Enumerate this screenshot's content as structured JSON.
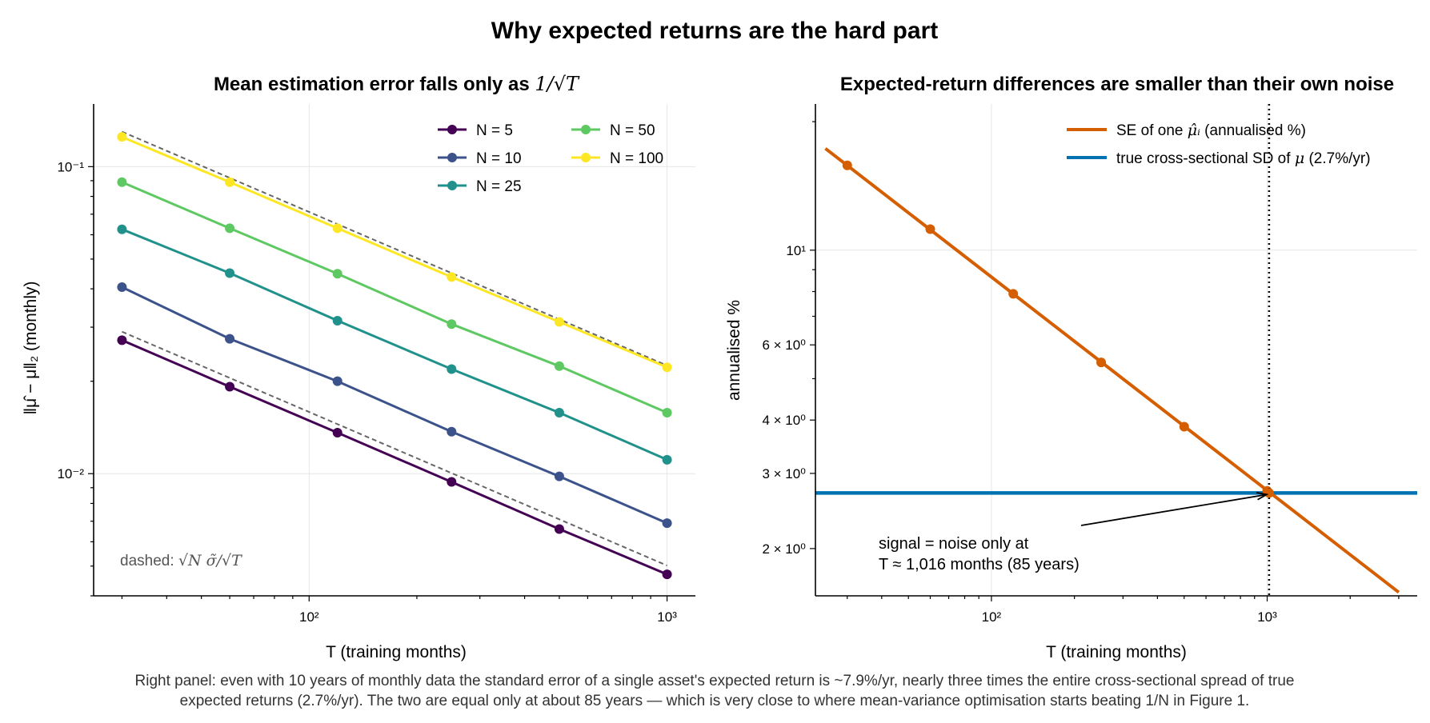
{
  "figure": {
    "title": "Why expected returns are the hard part",
    "caption_line1": "Right panel: even with 10 years of monthly data the standard error of a single asset's expected return is ~7.9%/yr, nearly three times the entire cross-sectional spread of true",
    "caption_line2": "expected returns (2.7%/yr). The two are equal only at about 85 years — which is very close to where mean-variance optimisation starts beating 1/N in Figure 1."
  },
  "chart_data": [
    {
      "type": "line",
      "title": "Mean estimation error falls only as 1/√T",
      "title_text": "Mean estimation error falls only as ",
      "title_math": "1/√T",
      "xlabel": "T  (training months)",
      "ylabel": "‖μ̂ − μ‖₂  (monthly)",
      "xscale": "log",
      "yscale": "log",
      "xlim": [
        25,
        1200
      ],
      "ylim": [
        0.004,
        0.16
      ],
      "xticks": [
        {
          "value": 100,
          "label": "10²"
        },
        {
          "value": 1000,
          "label": "10³"
        }
      ],
      "yticks": [
        {
          "value": 0.01,
          "label": "10⁻²"
        },
        {
          "value": 0.1,
          "label": "10⁻¹"
        }
      ],
      "grid": true,
      "legend_position": "top-right",
      "x": [
        30,
        60,
        120,
        250,
        500,
        1000
      ],
      "series": [
        {
          "name": "N = 5",
          "color": "#440154",
          "values": [
            0.0272,
            0.0192,
            0.0136,
            0.0094,
            0.0066,
            0.0047
          ]
        },
        {
          "name": "N = 10",
          "color": "#3b528b",
          "values": [
            0.0405,
            0.0275,
            0.02,
            0.0137,
            0.0098,
            0.0069
          ]
        },
        {
          "name": "N = 25",
          "color": "#21918c",
          "values": [
            0.0625,
            0.045,
            0.0315,
            0.0219,
            0.0158,
            0.0111
          ]
        },
        {
          "name": "N = 50",
          "color": "#5ec962",
          "values": [
            0.089,
            0.063,
            0.0448,
            0.0307,
            0.0224,
            0.0158
          ]
        },
        {
          "name": "N = 100",
          "color": "#fde725",
          "values": [
            0.125,
            0.089,
            0.063,
            0.0437,
            0.0312,
            0.0222
          ]
        }
      ],
      "reference_lines": [
        {
          "x": [
            30,
            1000
          ],
          "values": [
            0.029,
            0.00502
          ],
          "color": "#666666",
          "style": "dashed"
        },
        {
          "x": [
            30,
            1000
          ],
          "values": [
            0.13,
            0.0225
          ],
          "color": "#666666",
          "style": "dashed"
        }
      ],
      "annotation": {
        "text": "dashed: ",
        "math": "√N σ̃/√T",
        "position": "bottom-left"
      }
    },
    {
      "type": "line",
      "title": "Expected-return differences are smaller than their own noise",
      "xlabel": "T  (training months)",
      "ylabel": "annualised %",
      "xscale": "log",
      "yscale": "log",
      "xlim": [
        23,
        3500
      ],
      "ylim": [
        1.55,
        22
      ],
      "xticks": [
        {
          "value": 100,
          "label": "10²"
        },
        {
          "value": 1000,
          "label": "10³"
        }
      ],
      "yticks": [
        {
          "value": 2,
          "label": "2 × 10⁰"
        },
        {
          "value": 3,
          "label": "3 × 10⁰"
        },
        {
          "value": 4,
          "label": "4 × 10⁰"
        },
        {
          "value": 6,
          "label": "6 × 10⁰"
        },
        {
          "value": 10,
          "label": "10¹"
        }
      ],
      "grid": true,
      "legend_position": "top-right",
      "series": [
        {
          "name": "SE of one μ̂ᵢ  (annualised %)",
          "legend_text": "SE of one ",
          "legend_math": "μ̂ᵢ",
          "legend_suffix": "  (annualised %)",
          "color": "#d55e00",
          "line_x": [
            25,
            3000
          ],
          "line_values": [
            17.3,
            1.58
          ],
          "x": [
            30,
            60,
            120,
            250,
            500,
            1000
          ],
          "values": [
            15.8,
            11.2,
            7.9,
            5.46,
            3.86,
            2.73
          ]
        },
        {
          "name": "true cross-sectional SD of μ (2.7%/yr)",
          "legend_text": "true cross-sectional SD of ",
          "legend_math": "μ",
          "legend_suffix": " (2.7%/yr)",
          "color": "#0072b2",
          "constant": 2.7
        }
      ],
      "vline": {
        "x": 1016,
        "style": "dotted",
        "color": "#000000"
      },
      "intersection_point": {
        "x": 1016,
        "y": 2.7
      },
      "annotation": {
        "line1": "signal = noise only at",
        "line2": "T ≈ 1,016 months (85 years)",
        "arrow_to": {
          "x": 1016,
          "y": 2.7
        }
      }
    }
  ]
}
